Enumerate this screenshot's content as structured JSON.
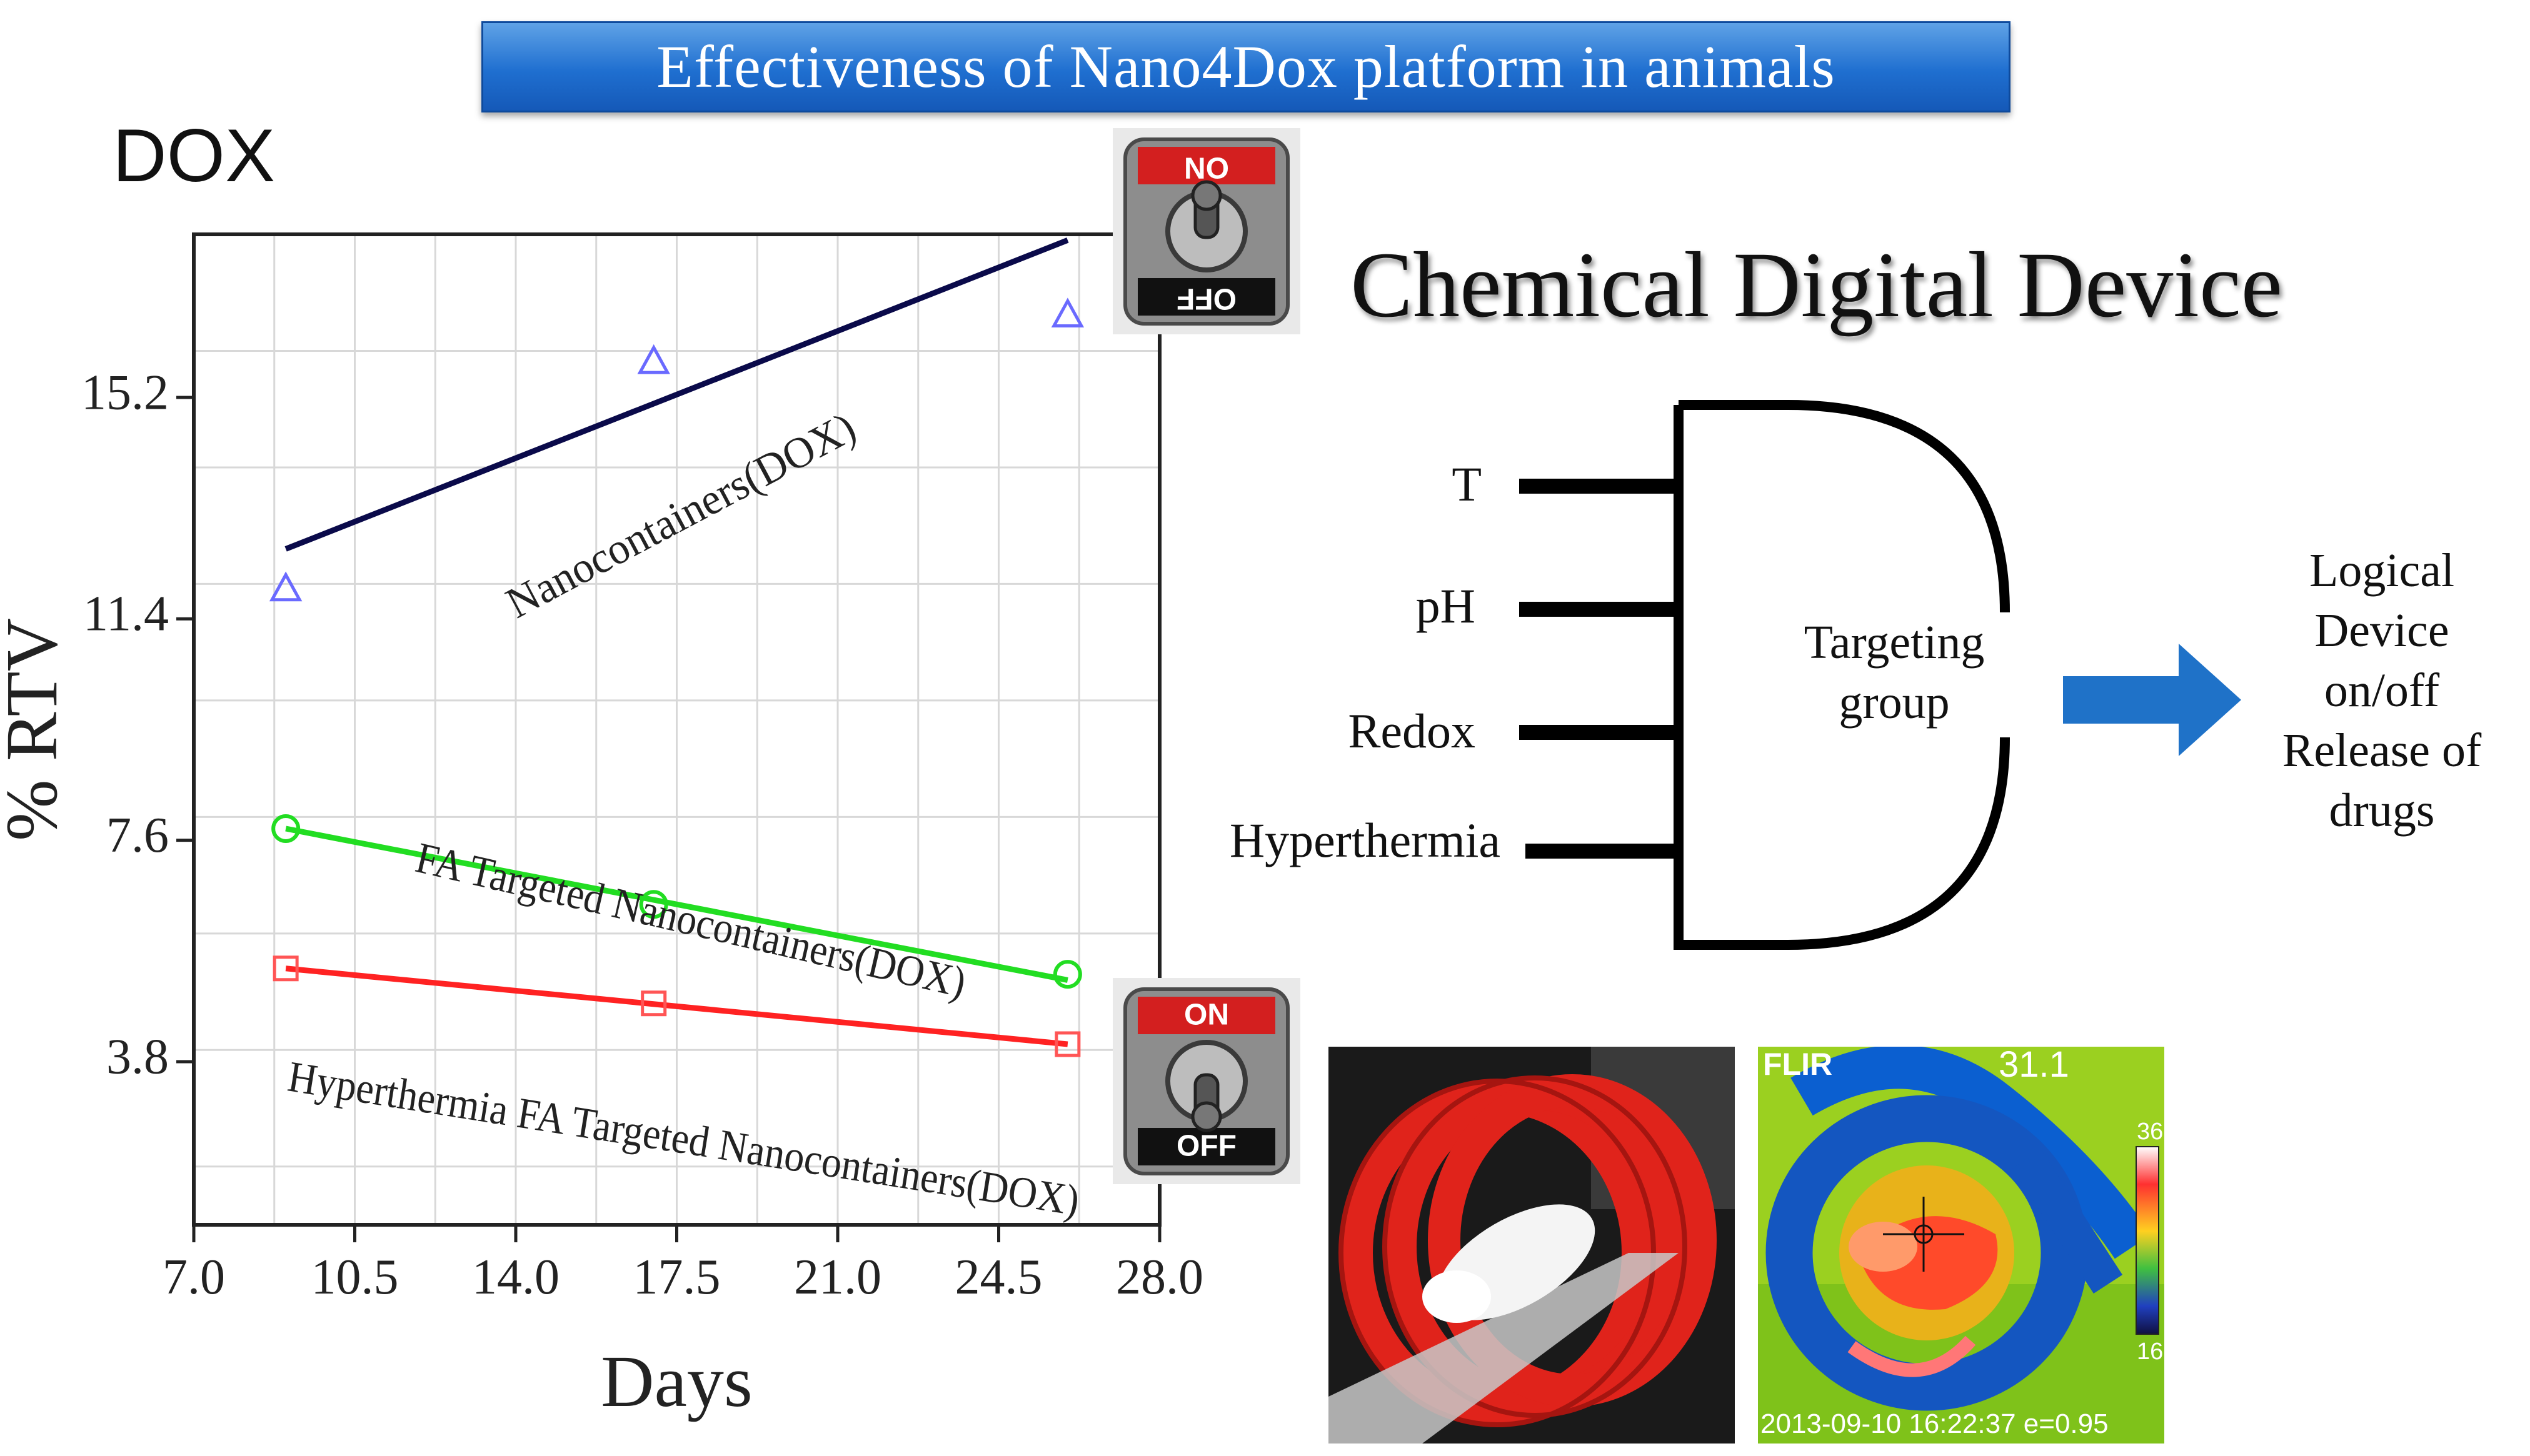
{
  "banner": {
    "title": "Effectiveness of Nano4Dox platform in animals"
  },
  "panel_label": "DOX",
  "switches": [
    {
      "top_label": "ON",
      "bottom_label": "OFF",
      "orientation": "inverted"
    },
    {
      "top_label": "ON",
      "bottom_label": "OFF",
      "orientation": "normal"
    }
  ],
  "chart_data": {
    "type": "line",
    "xlabel": "Days",
    "ylabel": "% RTV",
    "xlim": [
      7.0,
      28.0
    ],
    "ylim": [
      1.0,
      18.0
    ],
    "x_ticks": [
      "7.0",
      "10.5",
      "14.0",
      "17.5",
      "21.0",
      "24.5",
      "28.0"
    ],
    "y_ticks": [
      "3.8",
      "7.6",
      "11.4",
      "15.2"
    ],
    "y_tick_values": [
      3.8,
      7.6,
      11.4,
      15.2
    ],
    "x_tick_values": [
      7.0,
      10.5,
      14.0,
      17.5,
      21.0,
      24.5,
      28.0
    ],
    "grid": true,
    "series": [
      {
        "name": "Nanocontainers(DOX)",
        "color": "#0a0a4a",
        "marker_color": "#6a6aff",
        "marker": "triangle",
        "x": [
          9,
          17,
          26
        ],
        "values": [
          11.9,
          15.8,
          16.6
        ],
        "fit": [
          [
            9,
            12.6
          ],
          [
            26,
            17.9
          ]
        ]
      },
      {
        "name": "FA Targeted Nanocontainers(DOX)",
        "color": "#22dd22",
        "marker_color": "#22dd22",
        "marker": "circle",
        "x": [
          9,
          17,
          26
        ],
        "values": [
          7.8,
          6.5,
          5.3
        ],
        "fit": [
          [
            9,
            7.8
          ],
          [
            26,
            5.2
          ]
        ]
      },
      {
        "name": "Hyperthermia FA Targeted Nanocontainers(DOX)",
        "color": "#ff2222",
        "marker_color": "#ff5555",
        "marker": "square",
        "x": [
          9,
          17,
          26
        ],
        "values": [
          5.4,
          4.8,
          4.1
        ],
        "fit": [
          [
            9,
            5.4
          ],
          [
            26,
            4.1
          ]
        ]
      }
    ]
  },
  "device": {
    "title": "Chemical Digital Device",
    "inputs": [
      "T",
      "pH",
      "Redox",
      "Hyperthermia"
    ],
    "gate_label": "Targeting group",
    "output_lines": [
      "Logical",
      "Device",
      "on/off",
      "Release of",
      "drugs"
    ],
    "arrow_color": "#1f72c8"
  },
  "thermal": {
    "brand": "FLIR",
    "temperature": "31.1",
    "scale_max": "36",
    "scale_min": "16",
    "timestamp": "2013-09-10 16:22:37 e=0.95"
  }
}
